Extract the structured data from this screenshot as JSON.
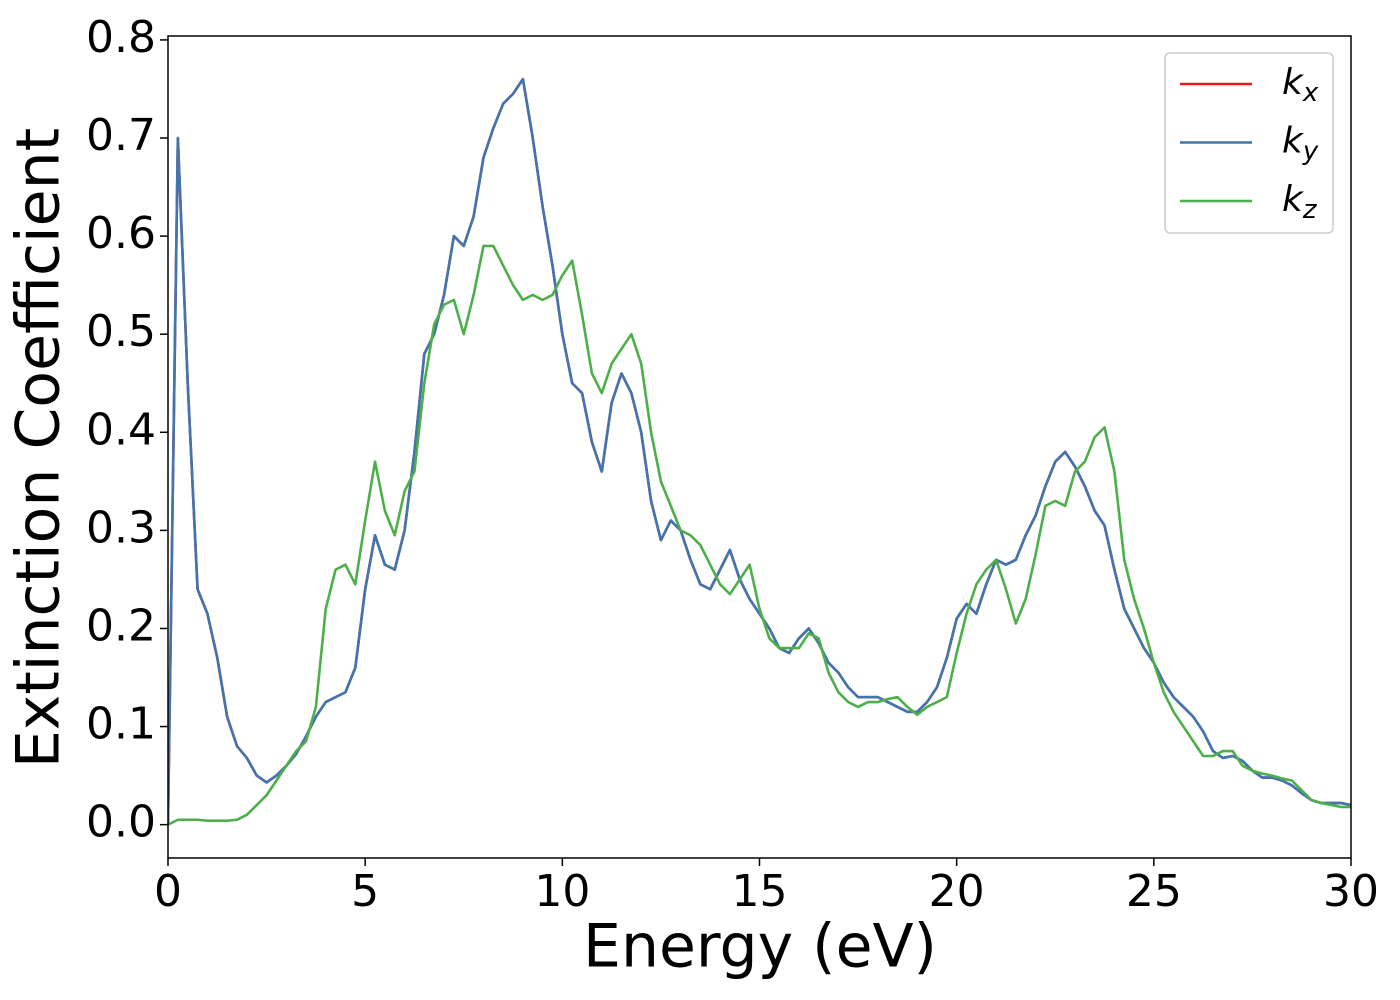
{
  "chart_data": {
    "type": "line",
    "xlabel": "Energy (eV)",
    "ylabel": "Extinction Coefficient",
    "xlim": [
      0,
      30
    ],
    "ylim": [
      -0.034,
      0.804
    ],
    "xticks": [
      0,
      5,
      10,
      15,
      20,
      25,
      30
    ],
    "yticks": [
      {
        "value": 0,
        "label": "0.0"
      },
      0.1,
      0.2,
      0.3,
      0.4,
      0.5,
      0.6,
      0.7,
      0.8
    ],
    "legend": "upper right",
    "grid": false,
    "x": [
      0,
      0.25,
      0.5,
      0.75,
      1,
      1.25,
      1.5,
      1.75,
      2,
      2.25,
      2.5,
      2.75,
      3,
      3.25,
      3.5,
      3.75,
      4,
      4.25,
      4.5,
      4.75,
      5,
      5.25,
      5.5,
      5.75,
      6,
      6.25,
      6.5,
      6.75,
      7,
      7.25,
      7.5,
      7.75,
      8,
      8.25,
      8.5,
      8.75,
      9,
      9.25,
      9.5,
      9.75,
      10,
      10.25,
      10.5,
      10.75,
      11,
      11.25,
      11.5,
      11.75,
      12,
      12.25,
      12.5,
      12.75,
      13,
      13.25,
      13.5,
      13.75,
      14,
      14.25,
      14.5,
      14.75,
      15,
      15.25,
      15.5,
      15.75,
      16,
      16.25,
      16.5,
      16.75,
      17,
      17.25,
      17.5,
      17.75,
      18,
      18.25,
      18.5,
      18.75,
      19,
      19.25,
      19.5,
      19.75,
      20,
      20.25,
      20.5,
      20.75,
      21,
      21.25,
      21.5,
      21.75,
      22,
      22.25,
      22.5,
      22.75,
      23,
      23.25,
      23.5,
      23.75,
      24,
      24.25,
      24.5,
      24.75,
      25,
      25.25,
      25.5,
      25.75,
      26,
      26.25,
      26.5,
      26.75,
      27,
      27.25,
      27.5,
      27.75,
      28,
      28.25,
      28.5,
      28.75,
      29,
      29.25,
      29.5,
      29.75,
      30
    ],
    "series": [
      {
        "name": "kx",
        "color": "#e41a1c",
        "values": [
          0,
          0.7,
          0.45,
          0.24,
          0.215,
          0.17,
          0.11,
          0.08,
          0.068,
          0.05,
          0.043,
          0.05,
          0.06,
          0.072,
          0.09,
          0.11,
          0.125,
          0.13,
          0.135,
          0.16,
          0.24,
          0.295,
          0.265,
          0.26,
          0.3,
          0.38,
          0.48,
          0.5,
          0.54,
          0.6,
          0.59,
          0.62,
          0.68,
          0.71,
          0.735,
          0.745,
          0.76,
          0.7,
          0.63,
          0.57,
          0.5,
          0.45,
          0.44,
          0.39,
          0.36,
          0.43,
          0.46,
          0.44,
          0.4,
          0.33,
          0.29,
          0.31,
          0.3,
          0.27,
          0.245,
          0.24,
          0.26,
          0.28,
          0.25,
          0.23,
          0.215,
          0.2,
          0.18,
          0.175,
          0.19,
          0.2,
          0.185,
          0.165,
          0.155,
          0.14,
          0.13,
          0.13,
          0.13,
          0.125,
          0.12,
          0.115,
          0.115,
          0.125,
          0.14,
          0.17,
          0.21,
          0.225,
          0.215,
          0.245,
          0.27,
          0.265,
          0.27,
          0.295,
          0.315,
          0.345,
          0.37,
          0.38,
          0.365,
          0.345,
          0.32,
          0.305,
          0.26,
          0.22,
          0.2,
          0.18,
          0.165,
          0.145,
          0.13,
          0.12,
          0.11,
          0.095,
          0.075,
          0.068,
          0.07,
          0.065,
          0.055,
          0.048,
          0.048,
          0.045,
          0.04,
          0.032,
          0.025,
          0.022,
          0.022,
          0.022,
          0.02
        ]
      },
      {
        "name": "ky",
        "color": "#3f76b0",
        "values": [
          0,
          0.7,
          0.45,
          0.24,
          0.215,
          0.17,
          0.11,
          0.08,
          0.068,
          0.05,
          0.043,
          0.05,
          0.06,
          0.072,
          0.09,
          0.11,
          0.125,
          0.13,
          0.135,
          0.16,
          0.24,
          0.295,
          0.265,
          0.26,
          0.3,
          0.38,
          0.48,
          0.5,
          0.54,
          0.6,
          0.59,
          0.62,
          0.68,
          0.71,
          0.735,
          0.745,
          0.76,
          0.7,
          0.63,
          0.57,
          0.5,
          0.45,
          0.44,
          0.39,
          0.36,
          0.43,
          0.46,
          0.44,
          0.4,
          0.33,
          0.29,
          0.31,
          0.3,
          0.27,
          0.245,
          0.24,
          0.26,
          0.28,
          0.25,
          0.23,
          0.215,
          0.2,
          0.18,
          0.175,
          0.19,
          0.2,
          0.185,
          0.165,
          0.155,
          0.14,
          0.13,
          0.13,
          0.13,
          0.125,
          0.12,
          0.115,
          0.115,
          0.125,
          0.14,
          0.17,
          0.21,
          0.225,
          0.215,
          0.245,
          0.27,
          0.265,
          0.27,
          0.295,
          0.315,
          0.345,
          0.37,
          0.38,
          0.365,
          0.345,
          0.32,
          0.305,
          0.26,
          0.22,
          0.2,
          0.18,
          0.165,
          0.145,
          0.13,
          0.12,
          0.11,
          0.095,
          0.075,
          0.068,
          0.07,
          0.065,
          0.055,
          0.048,
          0.048,
          0.045,
          0.04,
          0.032,
          0.025,
          0.022,
          0.022,
          0.022,
          0.02
        ]
      },
      {
        "name": "kz",
        "color": "#4daf4a",
        "values": [
          0,
          0.005,
          0.005,
          0.005,
          0.004,
          0.004,
          0.004,
          0.005,
          0.01,
          0.02,
          0.03,
          0.045,
          0.06,
          0.075,
          0.085,
          0.12,
          0.22,
          0.26,
          0.265,
          0.245,
          0.31,
          0.37,
          0.32,
          0.295,
          0.34,
          0.36,
          0.45,
          0.51,
          0.53,
          0.535,
          0.5,
          0.54,
          0.59,
          0.59,
          0.57,
          0.55,
          0.535,
          0.54,
          0.535,
          0.54,
          0.56,
          0.575,
          0.52,
          0.46,
          0.44,
          0.47,
          0.485,
          0.5,
          0.47,
          0.4,
          0.35,
          0.325,
          0.3,
          0.295,
          0.285,
          0.265,
          0.245,
          0.235,
          0.25,
          0.265,
          0.22,
          0.19,
          0.18,
          0.18,
          0.18,
          0.195,
          0.19,
          0.155,
          0.135,
          0.125,
          0.12,
          0.125,
          0.125,
          0.128,
          0.13,
          0.12,
          0.112,
          0.12,
          0.125,
          0.13,
          0.175,
          0.215,
          0.245,
          0.26,
          0.27,
          0.24,
          0.205,
          0.23,
          0.275,
          0.325,
          0.33,
          0.325,
          0.36,
          0.37,
          0.395,
          0.405,
          0.36,
          0.27,
          0.23,
          0.2,
          0.165,
          0.135,
          0.115,
          0.1,
          0.085,
          0.07,
          0.07,
          0.075,
          0.075,
          0.06,
          0.055,
          0.052,
          0.05,
          0.047,
          0.045,
          0.035,
          0.025,
          0.022,
          0.02,
          0.018,
          0.018
        ]
      }
    ]
  }
}
